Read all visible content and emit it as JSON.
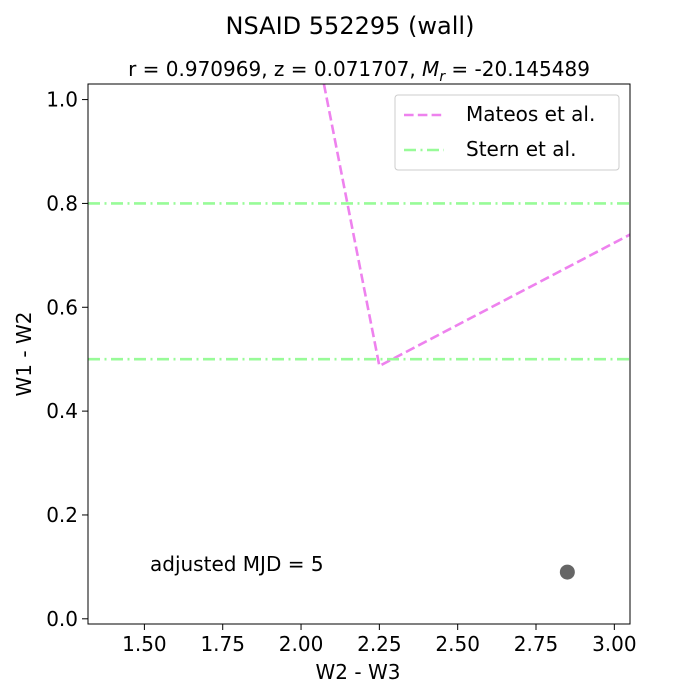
{
  "chart_data": {
    "type": "line",
    "title": "NSAID 552295 (wall)",
    "subtitle": {
      "prefix": "r = 0.970969,  z = 0.071707,  ",
      "mag_symbol": "M",
      "mag_subscript": "r",
      "suffix": " = -20.145489"
    },
    "xlabel": "W2 - W3",
    "ylabel": "W1 - W2",
    "xlim": [
      1.32,
      3.05
    ],
    "ylim": [
      -0.01,
      1.03
    ],
    "xticks": [
      "1.50",
      "1.75",
      "2.00",
      "2.25",
      "2.50",
      "2.75",
      "3.00"
    ],
    "yticks": [
      "0.0",
      "0.2",
      "0.4",
      "0.6",
      "0.8",
      "1.0"
    ],
    "grid": false,
    "legend_position": "top-right",
    "series": [
      {
        "name": "Mateos et al.",
        "style": "dashed",
        "color": "#ee82ee",
        "x": [
          2.073,
          2.25,
          3.05
        ],
        "y": [
          1.03,
          0.487,
          0.74
        ]
      },
      {
        "name": "Stern et al.",
        "style": "dashdot",
        "color": "#98fb98",
        "segments": [
          {
            "x": [
              1.32,
              3.05
            ],
            "y": [
              0.8,
              0.8
            ]
          },
          {
            "x": [
              1.32,
              3.05
            ],
            "y": [
              0.5,
              0.5
            ]
          }
        ]
      }
    ],
    "points": [
      {
        "x": 2.85,
        "y": 0.09,
        "color": "#666666"
      }
    ],
    "annotation": "adjusted MJD = 5"
  }
}
